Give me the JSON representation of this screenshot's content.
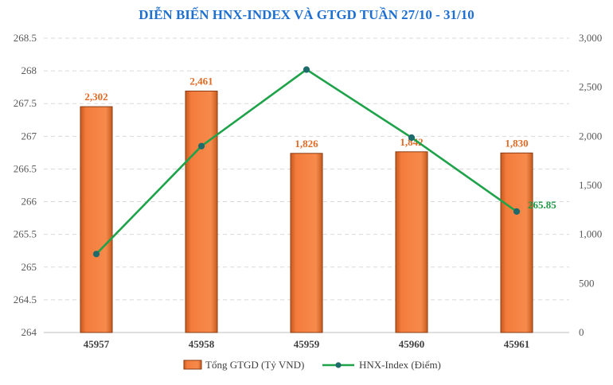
{
  "chart_data": {
    "type": "bar",
    "title": "DIỄN BIẾN HNX-INDEX VÀ GTGD TUẦN 27/10 - 31/10",
    "categories": [
      "45957",
      "45958",
      "45959",
      "45960",
      "45961"
    ],
    "series": [
      {
        "name": "Tổng GTGD (Tỷ VND)",
        "type": "bar",
        "axis": "right",
        "values": [
          2302,
          2461,
          1826,
          1842,
          1830
        ],
        "labels": [
          "2,302",
          "2,461",
          "1,826",
          "1,842",
          "1,830"
        ]
      },
      {
        "name": "HNX-Index (Điểm)",
        "type": "line",
        "axis": "left",
        "values": [
          265.2,
          266.85,
          268.02,
          266.98,
          265.85
        ],
        "last_label": "265.85"
      }
    ],
    "y_left": {
      "min": 264,
      "max": 268.5,
      "ticks": [
        "264",
        "264.5",
        "265",
        "265.5",
        "266",
        "266.5",
        "267",
        "267.5",
        "268",
        "268.5"
      ]
    },
    "y_right": {
      "min": 0,
      "max": 3000,
      "ticks": [
        "0",
        "500",
        "1,000",
        "1,500",
        "2,000",
        "2,500",
        "3,000"
      ]
    },
    "grid": true,
    "legend_position": "bottom",
    "colors": {
      "title": "#1f6fd1",
      "bar": "#f47c3c",
      "bar_edge": "#8a3b12",
      "bar_label": "#e06a24",
      "line": "#1ea34a",
      "marker": "#1e6b6b",
      "line_label": "#1e9a46",
      "grid": "#d9d9d9"
    }
  }
}
